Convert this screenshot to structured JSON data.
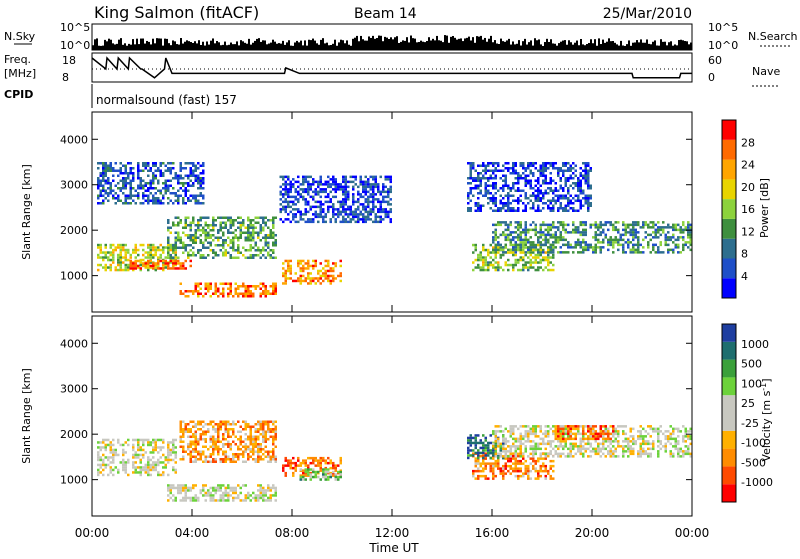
{
  "header": {
    "station": "King Salmon (fitACF)",
    "beam": "Beam 14",
    "date": "25/Mar/2010"
  },
  "top_panels": {
    "nsky_label": "N.Sky",
    "nsky_ticks": [
      "10^5",
      "10^0"
    ],
    "nsearch_label": "N.Search",
    "nsearch_ticks": [
      "10^5",
      "10^0"
    ],
    "freq_label_1": "Freq.",
    "freq_label_2": "[MHz]",
    "freq_ticks": [
      "18",
      "8"
    ],
    "nave_label": "Nave",
    "nave_ticks": [
      "60",
      "0"
    ],
    "cpid_label": "CPID",
    "cpid_text": "normalsound (fast) 157",
    "freq_steps": [
      {
        "t": 0.0,
        "level": 1
      },
      {
        "t": 0.55,
        "level": 0.5
      },
      {
        "t": 0.6,
        "level": 1
      },
      {
        "t": 1.0,
        "level": 0.5
      },
      {
        "t": 1.05,
        "level": 1
      },
      {
        "t": 1.45,
        "level": 0.5
      },
      {
        "t": 1.5,
        "level": 1
      },
      {
        "t": 1.95,
        "level": 0.5
      },
      {
        "t": 2.0,
        "level": 0.5
      },
      {
        "t": 2.5,
        "level": 0.1
      },
      {
        "t": 2.9,
        "level": 0.5
      },
      {
        "t": 2.95,
        "level": 1
      },
      {
        "t": 3.2,
        "level": 0.3
      },
      {
        "t": 7.7,
        "level": 0.3
      },
      {
        "t": 7.75,
        "level": 0.55
      },
      {
        "t": 8.3,
        "level": 0.3
      },
      {
        "t": 21.6,
        "level": 0.3
      },
      {
        "t": 21.65,
        "level": 0.1
      },
      {
        "t": 23.5,
        "level": 0.1
      },
      {
        "t": 23.55,
        "level": 0.3
      },
      {
        "t": 24.0,
        "level": 0.3
      }
    ]
  },
  "chart_data": [
    {
      "type": "heatmap",
      "name": "power",
      "xlabel": "",
      "ylabel": "Slant Range [km]",
      "xlim": [
        0,
        24
      ],
      "ylim": [
        200,
        4600
      ],
      "yticks": [
        "4000",
        "3000",
        "2000",
        "1000"
      ],
      "colorbar_label": "Power [dB]",
      "colorbar_ticks": [
        "28",
        "24",
        "20",
        "16",
        "12",
        "8",
        "4"
      ],
      "colorbar_colors": [
        "#0000ff",
        "#1e4fc8",
        "#2d6e8e",
        "#3e8f3e",
        "#8cd23c",
        "#e8d400",
        "#ffa500",
        "#ff6a00",
        "#ff0000"
      ],
      "blobs": [
        {
          "t0": 0.2,
          "t1": 3.4,
          "r0": 1100,
          "r1": 1700,
          "v": 0.55
        },
        {
          "t0": 1.5,
          "t1": 4.0,
          "r0": 1150,
          "r1": 1350,
          "v": 0.85
        },
        {
          "t0": 3.0,
          "t1": 7.4,
          "r0": 1400,
          "r1": 2300,
          "v": 0.4
        },
        {
          "t0": 3.5,
          "t1": 7.4,
          "r0": 550,
          "r1": 850,
          "v": 0.8
        },
        {
          "t0": 7.6,
          "t1": 10.0,
          "r0": 800,
          "r1": 1350,
          "v": 0.75
        },
        {
          "t0": 0.2,
          "t1": 4.5,
          "r0": 2600,
          "r1": 3500,
          "v": 0.2
        },
        {
          "t0": 7.5,
          "t1": 12.0,
          "r0": 2200,
          "r1": 3200,
          "v": 0.15
        },
        {
          "t0": 15.2,
          "t1": 18.5,
          "r0": 1100,
          "r1": 1700,
          "v": 0.5
        },
        {
          "t0": 16.0,
          "t1": 24.0,
          "r0": 1500,
          "r1": 2200,
          "v": 0.35
        },
        {
          "t0": 15.0,
          "t1": 20.0,
          "r0": 2400,
          "r1": 3500,
          "v": 0.15
        }
      ]
    },
    {
      "type": "heatmap",
      "name": "velocity",
      "xlabel": "Time UT",
      "ylabel": "Slant Range [km]",
      "xlim": [
        0,
        24
      ],
      "ylim": [
        200,
        4600
      ],
      "xticks": [
        "00:00",
        "04:00",
        "08:00",
        "12:00",
        "16:00",
        "20:00",
        "00:00"
      ],
      "yticks": [
        "4000",
        "3000",
        "2000",
        "1000"
      ],
      "colorbar_label": "Velocity [m s",
      "colorbar_label_sup": "-1",
      "colorbar_label_end": "]",
      "colorbar_ticks": [
        "1000",
        "500",
        "100",
        "25",
        "-25",
        "-100",
        "-500",
        "-1000"
      ],
      "colorbar_colors": [
        "#ff0000",
        "#ff4a00",
        "#ff8c00",
        "#ffb000",
        "#c8c8c0",
        "#c8c8c0",
        "#6cd23a",
        "#3aa03a",
        "#1e6e6e",
        "#1e3ea0"
      ],
      "blobs": [
        {
          "t0": 0.2,
          "t1": 3.4,
          "r0": 1100,
          "r1": 1900,
          "v": 0.5
        },
        {
          "t0": 3.0,
          "t1": 7.4,
          "r0": 550,
          "r1": 900,
          "v": 0.5
        },
        {
          "t0": 3.5,
          "t1": 7.4,
          "r0": 1400,
          "r1": 2300,
          "v": 0.3
        },
        {
          "t0": 7.6,
          "t1": 10.0,
          "r0": 1100,
          "r1": 1500,
          "v": 0.2
        },
        {
          "t0": 8.3,
          "t1": 10.0,
          "r0": 1000,
          "r1": 1250,
          "v": 0.65
        },
        {
          "t0": 15.2,
          "t1": 18.5,
          "r0": 1000,
          "r1": 1600,
          "v": 0.25
        },
        {
          "t0": 15.0,
          "t1": 16.5,
          "r0": 1500,
          "r1": 2000,
          "v": 0.85
        },
        {
          "t0": 16.0,
          "t1": 24.0,
          "r0": 1500,
          "r1": 2200,
          "v": 0.5
        },
        {
          "t0": 18.5,
          "t1": 21.0,
          "r0": 1900,
          "r1": 2200,
          "v": 0.2
        }
      ]
    }
  ]
}
